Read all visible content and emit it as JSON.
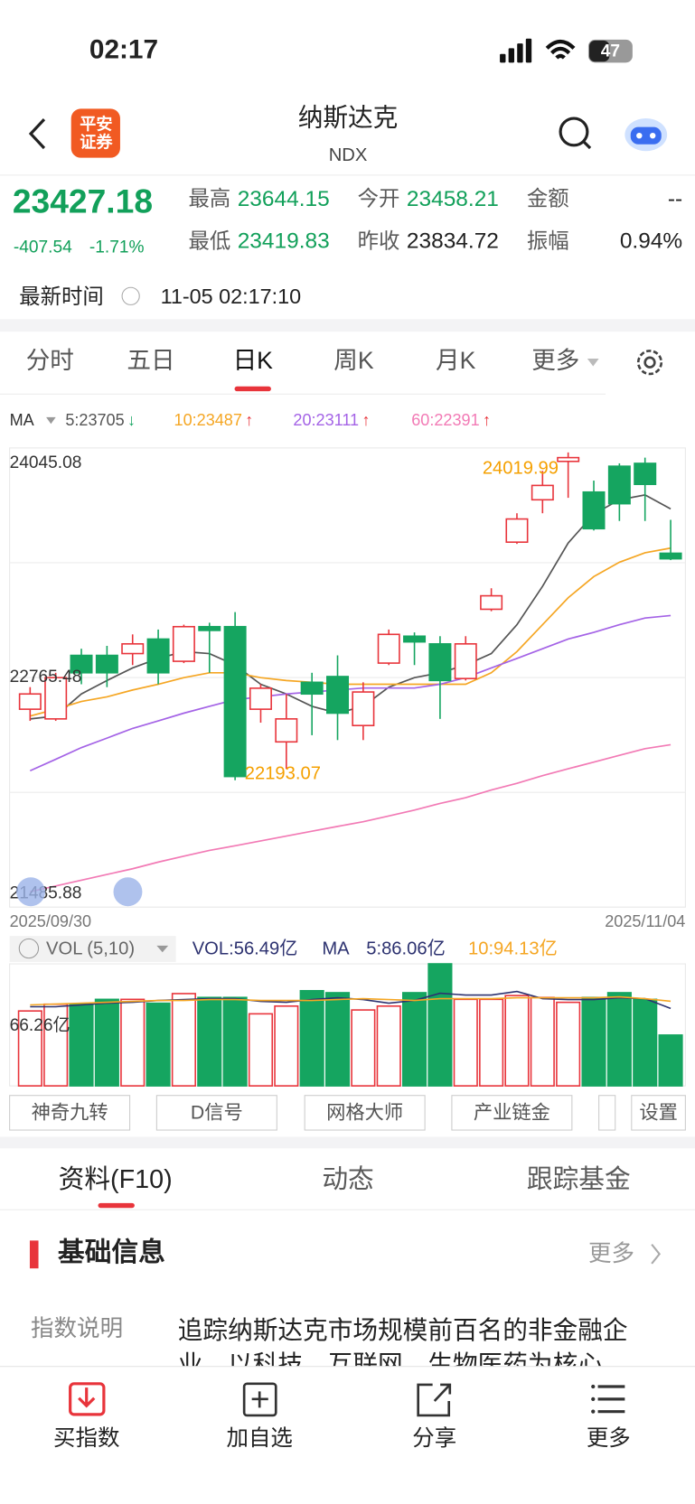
{
  "status_bar": {
    "time": "02:17",
    "battery": "47"
  },
  "header": {
    "logo": [
      "平安",
      "证券"
    ],
    "title": "纳斯达克",
    "code": "NDX"
  },
  "quote": {
    "price": "23427.18",
    "change": "-407.54",
    "change_pct": "-1.71%",
    "fields": [
      {
        "label": "最高",
        "value": "23644.15"
      },
      {
        "label": "今开",
        "value": "23458.21"
      },
      {
        "label": "金额",
        "value": "--"
      },
      {
        "label": "最低",
        "value": "23419.83"
      },
      {
        "label": "昨收",
        "value": "23834.72"
      },
      {
        "label": "振幅",
        "value": "0.94%"
      }
    ],
    "time_label": "最新时间",
    "time": "11-05 02:17:10"
  },
  "tabs": [
    "分时",
    "五日",
    "日K",
    "周K",
    "月K",
    "更多"
  ],
  "kline": {
    "ma_label": "MA",
    "ma": [
      {
        "label": "5:23705",
        "arrow": "↓",
        "color": "#555555",
        "values": [
          22535,
          22551,
          22674,
          22749,
          22819,
          22872,
          22910,
          22899,
          22835,
          22728,
          22674,
          22605,
          22567,
          22605,
          22712,
          22765,
          22792,
          22835,
          22899,
          23060,
          23274,
          23515,
          23676,
          23756,
          23783,
          23705
        ]
      },
      {
        "label": "10:23487",
        "arrow": "↑",
        "color": "#f5a623",
        "values": [
          22551,
          22589,
          22632,
          22658,
          22696,
          22728,
          22765,
          22792,
          22792,
          22765,
          22749,
          22739,
          22728,
          22728,
          22728,
          22728,
          22728,
          22728,
          22792,
          22910,
          23060,
          23210,
          23328,
          23408,
          23461,
          23487
        ]
      },
      {
        "label": "20:23111",
        "arrow": "↑",
        "color": "#a463e6",
        "values": [
          22246,
          22310,
          22375,
          22428,
          22482,
          22524,
          22567,
          22605,
          22642,
          22658,
          22674,
          22685,
          22696,
          22707,
          22707,
          22707,
          22728,
          22765,
          22819,
          22872,
          22926,
          22980,
          23017,
          23060,
          23097,
          23111
        ]
      },
      {
        "label": "60:22391",
        "arrow": "↑",
        "color": "#f27ab5",
        "values": [
          21572,
          21604,
          21636,
          21668,
          21700,
          21737,
          21770,
          21802,
          21828,
          21855,
          21882,
          21909,
          21936,
          21962,
          21994,
          22027,
          22064,
          22096,
          22139,
          22176,
          22219,
          22257,
          22294,
          22332,
          22369,
          22391
        ]
      }
    ],
    "ylim": [
      21485.88,
      24045.08
    ],
    "yticks": [
      24045.08,
      22765.48,
      21485.88
    ],
    "gridlines": [
      24045.08,
      23405.28,
      22765.48,
      22125.68,
      21485.88
    ],
    "start_date": "2025/09/30",
    "end_date": "2025/11/04",
    "open": [
      22589,
      22535,
      22889,
      22889,
      22899,
      22980,
      22856,
      23049,
      23049,
      22589,
      22407,
      22739,
      22771,
      22498,
      22846,
      22996,
      22953,
      22760,
      23146,
      23520,
      23756,
      23970,
      23799,
      23943,
      23959,
      23458.21
    ],
    "high": [
      22712,
      22792,
      22926,
      22942,
      23006,
      23033,
      23060,
      23071,
      23130,
      22728,
      22674,
      22792,
      22889,
      22739,
      23033,
      23017,
      22996,
      22996,
      23263,
      23681,
      23917,
      24019.99,
      23863,
      23959,
      23991,
      23644.15
    ],
    "low": [
      22524,
      22524,
      22728,
      22712,
      22835,
      22728,
      22846,
      22792,
      22193.07,
      22514,
      22257,
      22444,
      22417,
      22417,
      22835,
      22835,
      22535,
      22749,
      23135,
      23510,
      23681,
      23767,
      23585,
      23638,
      23638,
      23419.83
    ],
    "close": [
      22674,
      22765,
      22792,
      22792,
      22953,
      22792,
      23049,
      23028,
      22214,
      22706,
      22535,
      22674,
      22567,
      22685,
      23006,
      22964,
      22749,
      22953,
      23221,
      23649,
      23836,
      23991,
      23595,
      23734,
      23842,
      23427.18
    ],
    "max_label": 24019.99,
    "min_label": 22193.07
  },
  "volume": {
    "selector": "VOL (5,10)",
    "vol_label": "VOL:56.49亿",
    "ma_label": "MA",
    "ma5_label": "5:86.06亿",
    "ma10_label": "10:94.13亿",
    "ylim": [
      0,
      135.68
    ],
    "yticks": [
      {
        "value": 66.26,
        "label": "66.26亿"
      }
    ],
    "values": [
      83.3,
      90.8,
      90.8,
      96.2,
      96.2,
      91.9,
      102.6,
      98.3,
      98.3,
      80.1,
      88.7,
      105.8,
      103.6,
      84.4,
      88.7,
      103.6,
      135.7,
      96.2,
      96.2,
      100.4,
      98.3,
      92.9,
      98.3,
      103.6,
      96.2,
      56.49
    ],
    "ma5": [
      88,
      88,
      90,
      92,
      93,
      95,
      96,
      97,
      97,
      94,
      93,
      96,
      98,
      96,
      92,
      95,
      103,
      101,
      101,
      105,
      97,
      96,
      96,
      98,
      97,
      86.06
    ],
    "ma10": [
      90,
      91,
      92,
      93,
      94,
      95,
      95,
      96,
      96,
      95,
      95,
      95,
      96,
      97,
      96,
      95,
      97,
      97,
      97,
      98,
      98,
      98,
      98,
      99,
      97,
      94.13
    ]
  },
  "tools": [
    "神奇九转",
    "D信号",
    "网格大师",
    "产业链金",
    "设置"
  ],
  "info_tabs": [
    "资料(F10)",
    "动态",
    "跟踪基金"
  ],
  "section": {
    "title": "基础信息",
    "more": "更多",
    "rows": [
      {
        "label": "指数说明",
        "text": "追踪纳斯达克市场规模前百名的非金融企业，以科技、互联网、生物医药为核心"
      }
    ]
  },
  "bottom_nav": [
    "买指数",
    "加自选",
    "分享",
    "更多"
  ]
}
